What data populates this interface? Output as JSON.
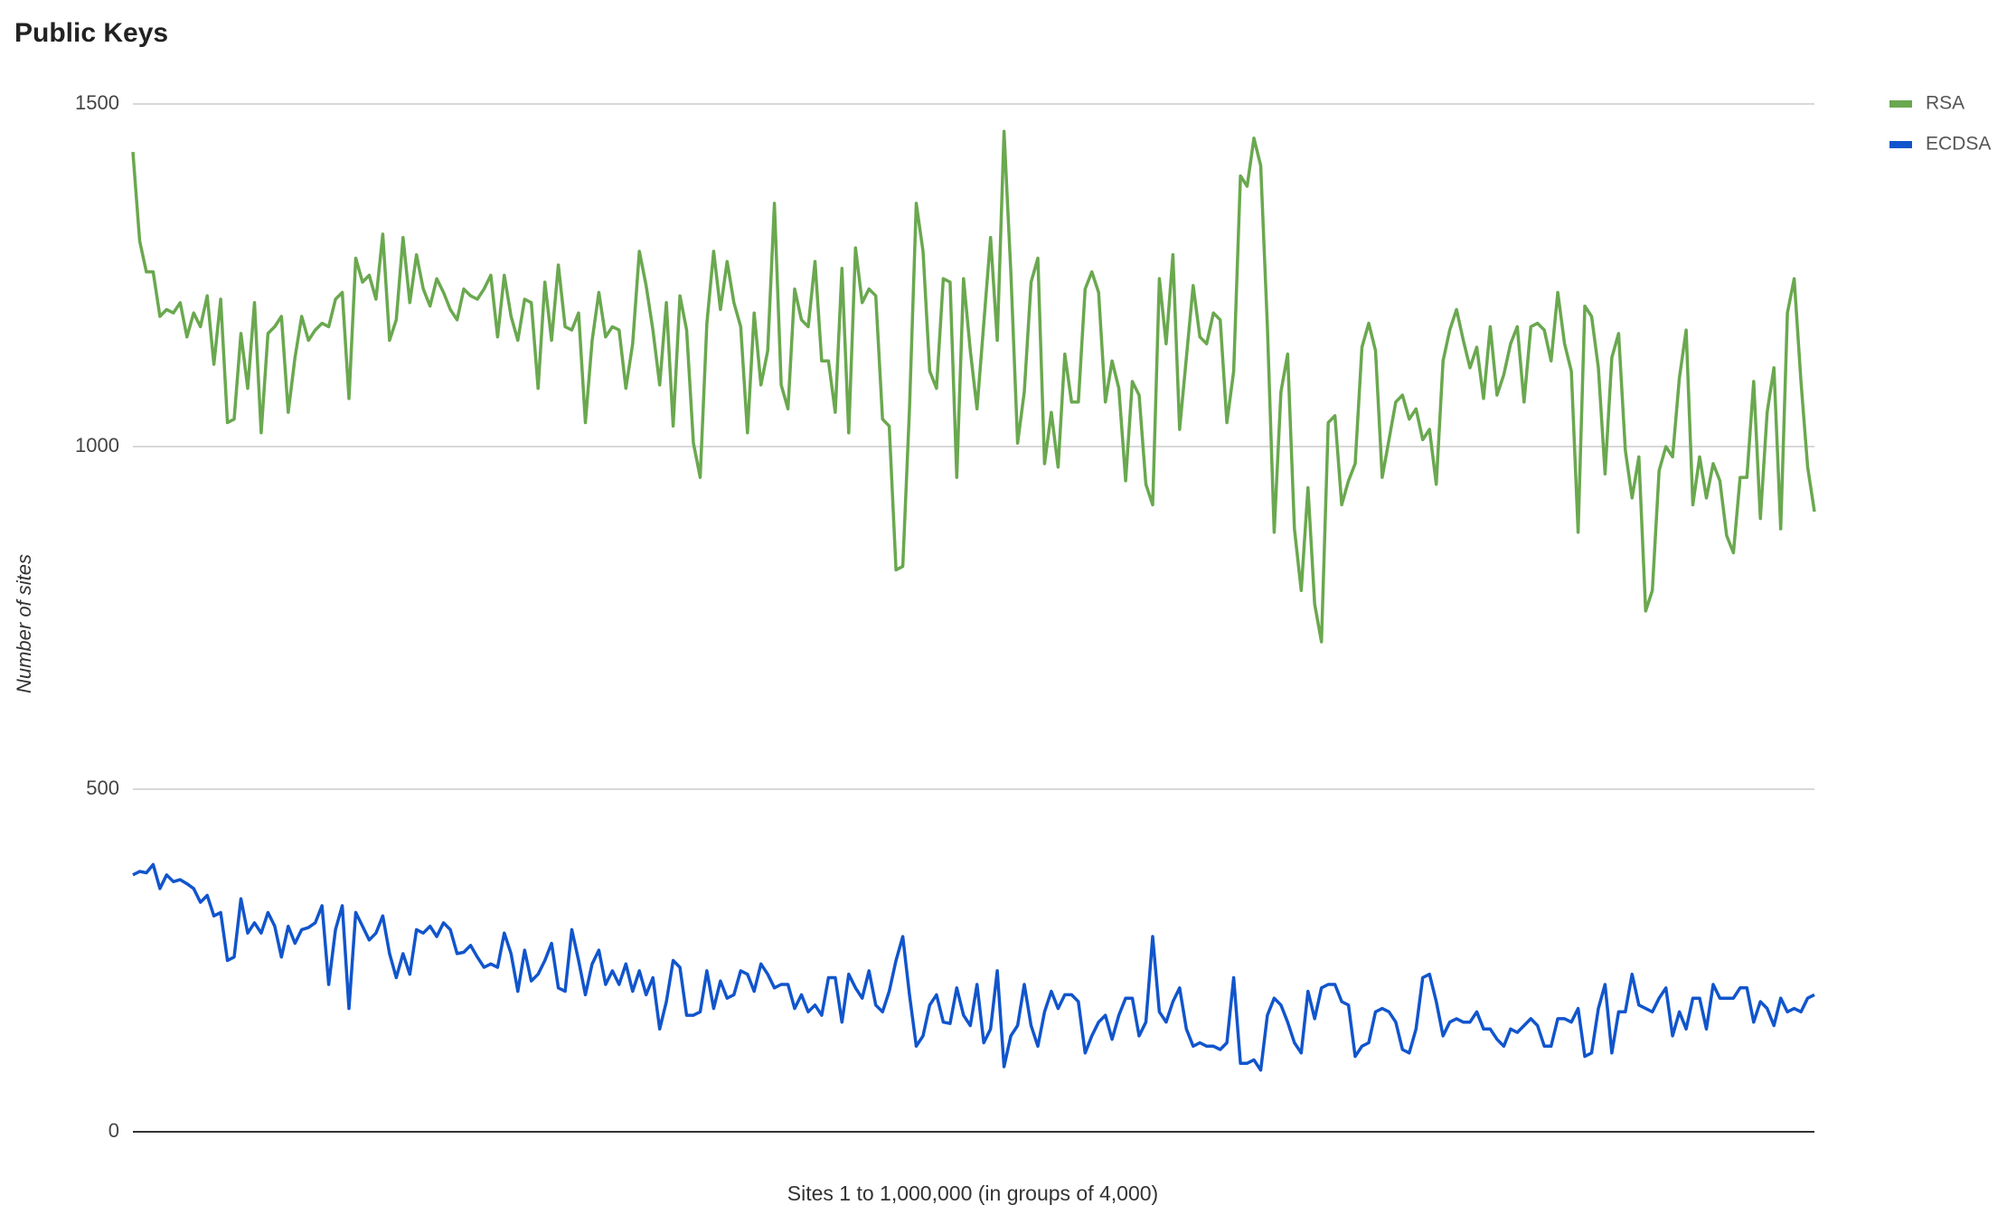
{
  "chart_data": {
    "type": "line",
    "title": "Public Keys",
    "x_label": "Sites 1 to 1,000,000 (in groups of 4,000)",
    "y_label": "Number of sites",
    "ylim": [
      0,
      1500
    ],
    "yticks": [
      0,
      500,
      1000,
      1500
    ],
    "grid": true,
    "legend": "right",
    "series": [
      {
        "name": "RSA",
        "color": "#6aa84f",
        "values": [
          1430,
          1300,
          1255,
          1255,
          1190,
          1200,
          1195,
          1210,
          1160,
          1195,
          1175,
          1220,
          1120,
          1215,
          1035,
          1040,
          1165,
          1085,
          1210,
          1020,
          1165,
          1175,
          1190,
          1050,
          1130,
          1190,
          1155,
          1170,
          1180,
          1175,
          1215,
          1225,
          1070,
          1275,
          1240,
          1250,
          1215,
          1310,
          1155,
          1185,
          1305,
          1210,
          1280,
          1230,
          1205,
          1245,
          1225,
          1200,
          1185,
          1230,
          1220,
          1215,
          1230,
          1250,
          1160,
          1250,
          1190,
          1155,
          1215,
          1210,
          1085,
          1240,
          1155,
          1265,
          1175,
          1170,
          1195,
          1035,
          1155,
          1225,
          1160,
          1175,
          1170,
          1085,
          1150,
          1285,
          1235,
          1170,
          1090,
          1210,
          1030,
          1220,
          1170,
          1005,
          955,
          1180,
          1285,
          1200,
          1270,
          1210,
          1175,
          1020,
          1195,
          1090,
          1140,
          1355,
          1090,
          1055,
          1230,
          1185,
          1175,
          1270,
          1125,
          1125,
          1050,
          1260,
          1020,
          1290,
          1210,
          1230,
          1220,
          1040,
          1030,
          820,
          825,
          1055,
          1355,
          1285,
          1110,
          1085,
          1245,
          1240,
          955,
          1245,
          1140,
          1055,
          1180,
          1305,
          1155,
          1460,
          1255,
          1005,
          1080,
          1240,
          1275,
          975,
          1050,
          970,
          1135,
          1065,
          1065,
          1230,
          1255,
          1225,
          1065,
          1125,
          1085,
          950,
          1095,
          1075,
          945,
          915,
          1245,
          1150,
          1280,
          1025,
          1130,
          1235,
          1160,
          1150,
          1195,
          1185,
          1035,
          1110,
          1395,
          1380,
          1450,
          1410,
          1175,
          875,
          1080,
          1135,
          880,
          790,
          940,
          770,
          715,
          1035,
          1045,
          915,
          950,
          975,
          1145,
          1180,
          1140,
          955,
          1010,
          1065,
          1075,
          1040,
          1055,
          1010,
          1025,
          945,
          1125,
          1170,
          1200,
          1155,
          1115,
          1145,
          1070,
          1175,
          1075,
          1105,
          1150,
          1175,
          1065,
          1175,
          1180,
          1170,
          1125,
          1225,
          1150,
          1110,
          875,
          1205,
          1190,
          1115,
          960,
          1130,
          1165,
          995,
          925,
          985,
          760,
          790,
          965,
          1000,
          985,
          1100,
          1170,
          915,
          985,
          925,
          975,
          950,
          870,
          845,
          955,
          955,
          1095,
          895,
          1050,
          1115,
          880,
          1195,
          1245,
          1095,
          970,
          905
        ]
      },
      {
        "name": "ECDSA",
        "color": "#1155cc",
        "values": [
          375,
          380,
          378,
          390,
          355,
          375,
          365,
          368,
          362,
          355,
          335,
          345,
          315,
          320,
          250,
          255,
          340,
          290,
          305,
          290,
          320,
          300,
          255,
          300,
          275,
          295,
          298,
          305,
          330,
          215,
          295,
          330,
          180,
          320,
          300,
          280,
          290,
          315,
          260,
          225,
          260,
          230,
          295,
          290,
          300,
          285,
          305,
          295,
          260,
          262,
          272,
          255,
          240,
          245,
          240,
          290,
          260,
          205,
          265,
          220,
          230,
          250,
          275,
          210,
          205,
          295,
          250,
          200,
          245,
          265,
          215,
          235,
          215,
          245,
          205,
          235,
          200,
          225,
          150,
          190,
          250,
          240,
          170,
          170,
          175,
          235,
          180,
          220,
          195,
          200,
          235,
          230,
          205,
          245,
          230,
          210,
          215,
          215,
          180,
          200,
          175,
          185,
          170,
          225,
          225,
          160,
          230,
          210,
          195,
          235,
          185,
          175,
          205,
          250,
          285,
          200,
          125,
          140,
          185,
          200,
          160,
          158,
          210,
          170,
          155,
          215,
          130,
          150,
          235,
          95,
          140,
          155,
          215,
          155,
          125,
          175,
          205,
          180,
          200,
          200,
          190,
          115,
          140,
          160,
          170,
          135,
          170,
          195,
          195,
          140,
          160,
          285,
          175,
          160,
          190,
          210,
          150,
          125,
          130,
          125,
          125,
          120,
          130,
          225,
          100,
          100,
          105,
          90,
          170,
          195,
          185,
          160,
          130,
          115,
          205,
          165,
          210,
          215,
          215,
          190,
          185,
          110,
          125,
          130,
          175,
          180,
          175,
          160,
          120,
          115,
          150,
          225,
          230,
          190,
          140,
          160,
          165,
          160,
          160,
          175,
          150,
          150,
          135,
          125,
          150,
          145,
          155,
          165,
          155,
          125,
          125,
          165,
          165,
          160,
          180,
          110,
          115,
          180,
          215,
          115,
          175,
          175,
          230,
          185,
          180,
          175,
          195,
          210,
          140,
          175,
          150,
          195,
          195,
          150,
          215,
          195,
          195,
          195,
          210,
          210,
          160,
          190,
          180,
          155,
          195,
          175,
          180,
          175,
          195,
          200
        ]
      }
    ]
  }
}
